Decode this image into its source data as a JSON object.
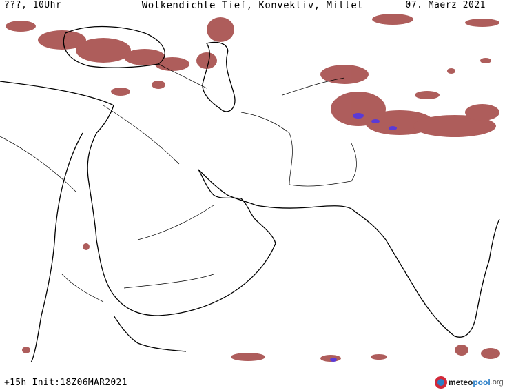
{
  "header": {
    "left": "???, 10Uhr",
    "center": "Wolkendichte   Tief, Konvektiv, Mittel",
    "right": "07. Maerz 2021"
  },
  "footer": {
    "left": "+15h Init:18Z06MAR2021"
  },
  "logo": {
    "part_a": "meteo",
    "part_b": "pool",
    "part_c": ".org"
  },
  "colors": {
    "cloud": "#a0413f",
    "cloud_light": "#c9938f",
    "convective": "#5a3ad6",
    "border": "#000000"
  }
}
